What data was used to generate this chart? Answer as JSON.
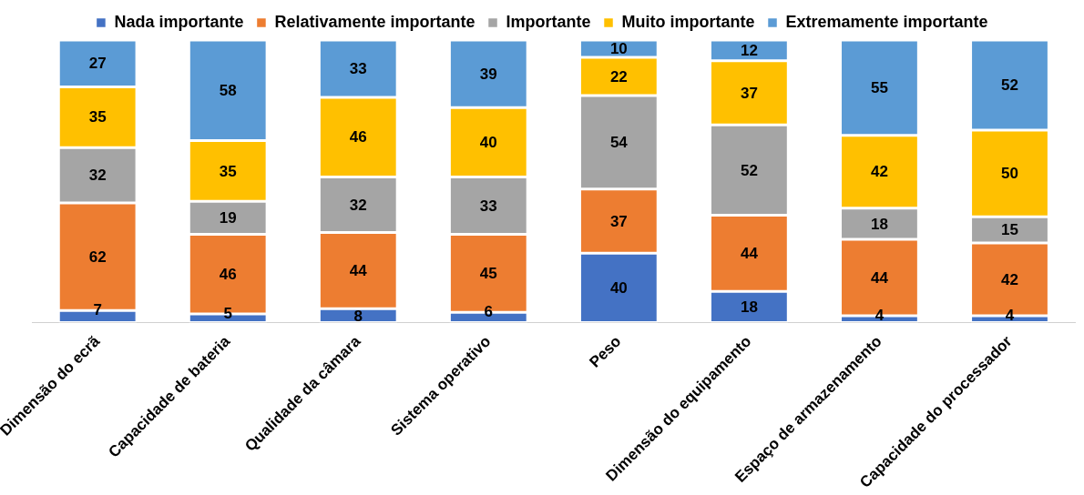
{
  "chart_data": {
    "type": "bar",
    "stacked": true,
    "data_labels": true,
    "legend": "top",
    "grid": false,
    "categories": [
      "Dimensão do ecrã",
      "Capacidade de bateria",
      "Qualidade da câmara",
      "Sistema operativo",
      "Peso",
      "Dimensão do equipamento",
      "Espaço de armazenamento",
      "Capacidade do processador"
    ],
    "series": [
      {
        "name": "Nada importante",
        "color": "#4472c4",
        "values": [
          7,
          5,
          8,
          6,
          40,
          18,
          4,
          4
        ]
      },
      {
        "name": "Relativamente importante",
        "color": "#ed7d31",
        "values": [
          62,
          46,
          44,
          45,
          37,
          44,
          44,
          42
        ]
      },
      {
        "name": "Importante",
        "color": "#a5a5a5",
        "values": [
          32,
          19,
          32,
          33,
          54,
          52,
          18,
          15
        ]
      },
      {
        "name": "Muito importante",
        "color": "#ffc000",
        "values": [
          35,
          35,
          46,
          40,
          22,
          37,
          42,
          50
        ]
      },
      {
        "name": "Extremamente importante",
        "color": "#5b9bd5",
        "values": [
          27,
          58,
          33,
          39,
          10,
          12,
          55,
          52
        ]
      }
    ]
  }
}
